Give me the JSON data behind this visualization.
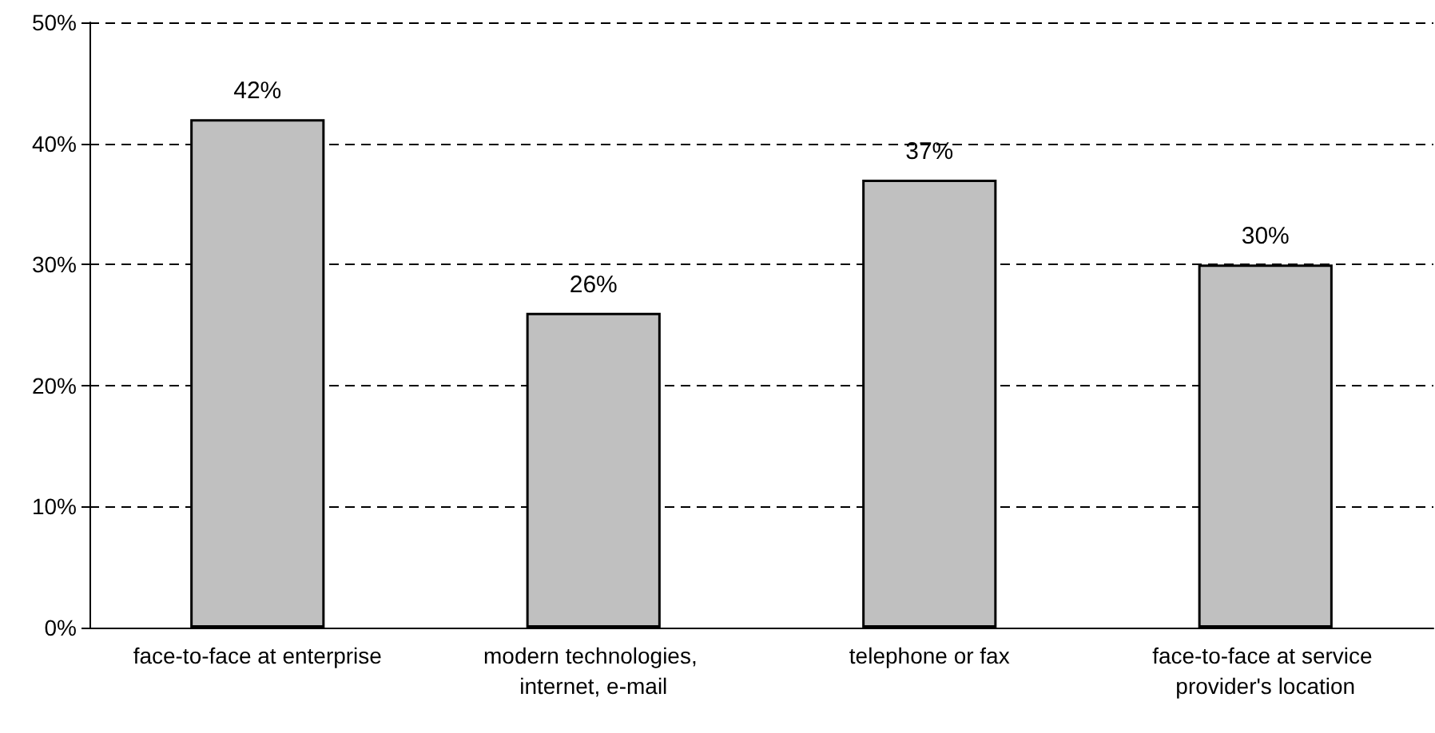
{
  "chart_data": {
    "type": "bar",
    "categories": [
      "face-to-face at enterprise",
      "modern technologies, internet, e-mail",
      "telephone or fax",
      "face-to-face at service provider's location"
    ],
    "values": [
      42,
      26,
      37,
      30
    ],
    "color": "#c0c0c0",
    "value_labels": [
      "42%",
      "26%",
      "37%",
      "30%"
    ],
    "ylim": [
      0,
      50
    ],
    "yticks": [
      {
        "value": 0,
        "label": "0%"
      },
      {
        "value": 10,
        "label": "10%"
      },
      {
        "value": 20,
        "label": "20%"
      },
      {
        "value": 30,
        "label": "30%"
      },
      {
        "value": 40,
        "label": "40%"
      },
      {
        "value": 50,
        "label": "50%"
      }
    ],
    "grid": "y"
  }
}
